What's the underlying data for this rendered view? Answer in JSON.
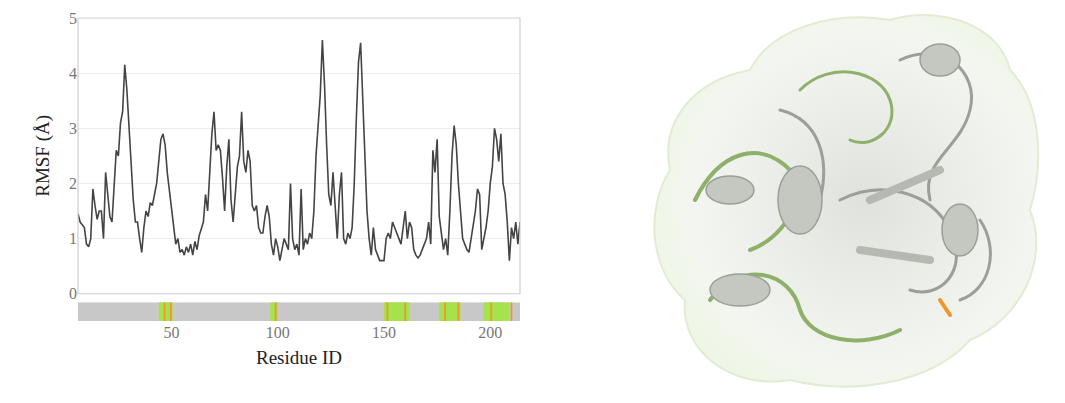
{
  "chart_data": {
    "type": "line",
    "xlabel": "Residue ID",
    "ylabel": "RMSF (Å)",
    "color": "#444444",
    "x": [
      6,
      7,
      8,
      9,
      10,
      11,
      12,
      13,
      14,
      15,
      16,
      17,
      18,
      19,
      20,
      21,
      22,
      23,
      24,
      25,
      26,
      27,
      28,
      29,
      30,
      31,
      32,
      33,
      34,
      35,
      36,
      37,
      38,
      39,
      40,
      41,
      42,
      43,
      44,
      45,
      46,
      47,
      48,
      49,
      50,
      51,
      52,
      53,
      54,
      55,
      56,
      57,
      58,
      59,
      60,
      61,
      62,
      63,
      64,
      65,
      66,
      67,
      68,
      69,
      70,
      71,
      72,
      73,
      74,
      75,
      76,
      77,
      78,
      79,
      80,
      81,
      82,
      83,
      84,
      85,
      86,
      87,
      88,
      89,
      90,
      91,
      92,
      93,
      94,
      95,
      96,
      97,
      98,
      99,
      100,
      101,
      102,
      103,
      104,
      105,
      106,
      107,
      108,
      109,
      110,
      111,
      112,
      113,
      114,
      115,
      116,
      117,
      118,
      119,
      120,
      121,
      122,
      123,
      124,
      125,
      126,
      127,
      128,
      129,
      130,
      131,
      132,
      133,
      134,
      135,
      136,
      137,
      138,
      139,
      140,
      141,
      142,
      143,
      144,
      145,
      146,
      147,
      148,
      149,
      150,
      151,
      152,
      153,
      154,
      155,
      156,
      157,
      158,
      159,
      160,
      161,
      162,
      163,
      164,
      165,
      166,
      167,
      168,
      169,
      170,
      171,
      172,
      173,
      174,
      175,
      176,
      177,
      178,
      179,
      180,
      181,
      182,
      183,
      184,
      185,
      186,
      187,
      188,
      189,
      190,
      191,
      192,
      193,
      194,
      195,
      196,
      197,
      198,
      199,
      200,
      201,
      202,
      203,
      204,
      205,
      206,
      207,
      208,
      209,
      210,
      211,
      212,
      213,
      214
    ],
    "values": [
      1.45,
      1.3,
      1.25,
      1.2,
      0.9,
      0.85,
      1.0,
      1.9,
      1.6,
      1.35,
      1.5,
      1.5,
      1.0,
      2.2,
      1.8,
      1.4,
      1.3,
      2.0,
      2.6,
      2.5,
      3.1,
      3.3,
      4.15,
      3.7,
      3.0,
      2.4,
      1.7,
      1.3,
      1.3,
      1.0,
      0.75,
      1.2,
      1.5,
      1.4,
      1.65,
      1.6,
      1.8,
      2.0,
      2.4,
      2.8,
      2.9,
      2.7,
      2.2,
      1.9,
      1.5,
      1.2,
      0.9,
      1.0,
      0.75,
      0.8,
      0.7,
      0.85,
      0.75,
      0.9,
      0.7,
      0.95,
      0.8,
      1.05,
      1.2,
      1.3,
      1.8,
      1.5,
      2.2,
      2.9,
      3.3,
      2.6,
      2.7,
      2.6,
      2.1,
      1.5,
      2.3,
      2.8,
      1.7,
      1.3,
      1.8,
      2.3,
      2.5,
      3.3,
      2.4,
      2.2,
      2.6,
      2.4,
      1.6,
      1.5,
      1.6,
      1.2,
      1.1,
      1.1,
      1.4,
      1.6,
      1.4,
      0.9,
      0.7,
      1.0,
      0.85,
      0.6,
      0.8,
      1.0,
      0.9,
      0.8,
      2.0,
      1.0,
      0.8,
      0.9,
      0.7,
      1.9,
      0.8,
      1.0,
      0.9,
      1.1,
      1.0,
      1.5,
      2.5,
      3.0,
      3.6,
      4.6,
      3.8,
      2.7,
      1.8,
      1.6,
      2.2,
      1.6,
      1.0,
      1.8,
      2.2,
      1.0,
      0.9,
      1.1,
      1.0,
      1.2,
      2.0,
      3.2,
      4.2,
      4.55,
      3.6,
      2.4,
      1.5,
      1.0,
      0.7,
      1.2,
      0.8,
      0.7,
      0.6,
      0.6,
      0.6,
      1.0,
      1.1,
      1.0,
      1.3,
      1.2,
      1.1,
      1.0,
      0.9,
      1.2,
      1.5,
      1.0,
      1.3,
      1.2,
      0.8,
      0.7,
      0.65,
      0.7,
      0.8,
      0.9,
      1.0,
      1.3,
      0.9,
      2.6,
      2.2,
      2.8,
      1.4,
      1.1,
      0.8,
      1.0,
      0.7,
      1.5,
      2.5,
      3.05,
      2.7,
      2.0,
      1.5,
      1.0,
      0.9,
      0.8,
      0.75,
      1.0,
      1.3,
      1.5,
      1.9,
      1.8,
      0.8,
      1.0,
      1.2,
      1.5,
      2.0,
      2.3,
      3.0,
      2.8,
      2.4,
      2.9,
      2.0,
      1.8,
      1.3,
      0.6,
      1.2,
      1.0,
      1.3,
      0.9,
      1.3
    ],
    "xlim": [
      6,
      214
    ],
    "ylim": [
      0,
      5
    ],
    "xticks": [
      50,
      100,
      150,
      200
    ],
    "yticks": [
      0,
      1,
      2,
      3,
      4,
      5
    ],
    "grid": true,
    "residue_strip": {
      "color": "#c8c8c8",
      "segments": [
        {
          "start": 44,
          "end": 50.5,
          "color": "#a6e24c"
        },
        {
          "start": 96.5,
          "end": 100,
          "color": "#a6e24c"
        },
        {
          "start": 150,
          "end": 162,
          "color": "#a6e24c"
        },
        {
          "start": 176,
          "end": 186,
          "color": "#a6e24c"
        },
        {
          "start": 197,
          "end": 209,
          "color": "#a6e24c"
        },
        {
          "start": 46.3,
          "end": 47.1,
          "color": "#f0962a"
        },
        {
          "start": 49.3,
          "end": 50.1,
          "color": "#f0962a"
        },
        {
          "start": 98.6,
          "end": 99.4,
          "color": "#f0962a"
        },
        {
          "start": 151.2,
          "end": 152,
          "color": "#f0962a"
        },
        {
          "start": 159.6,
          "end": 160.4,
          "color": "#f0962a"
        },
        {
          "start": 178.3,
          "end": 179.1,
          "color": "#f0962a"
        },
        {
          "start": 184.6,
          "end": 185.4,
          "color": "#f0962a"
        },
        {
          "start": 200.1,
          "end": 200.9,
          "color": "#f0962a"
        },
        {
          "start": 209.6,
          "end": 210.4,
          "color": "#f0962a"
        }
      ]
    }
  }
}
